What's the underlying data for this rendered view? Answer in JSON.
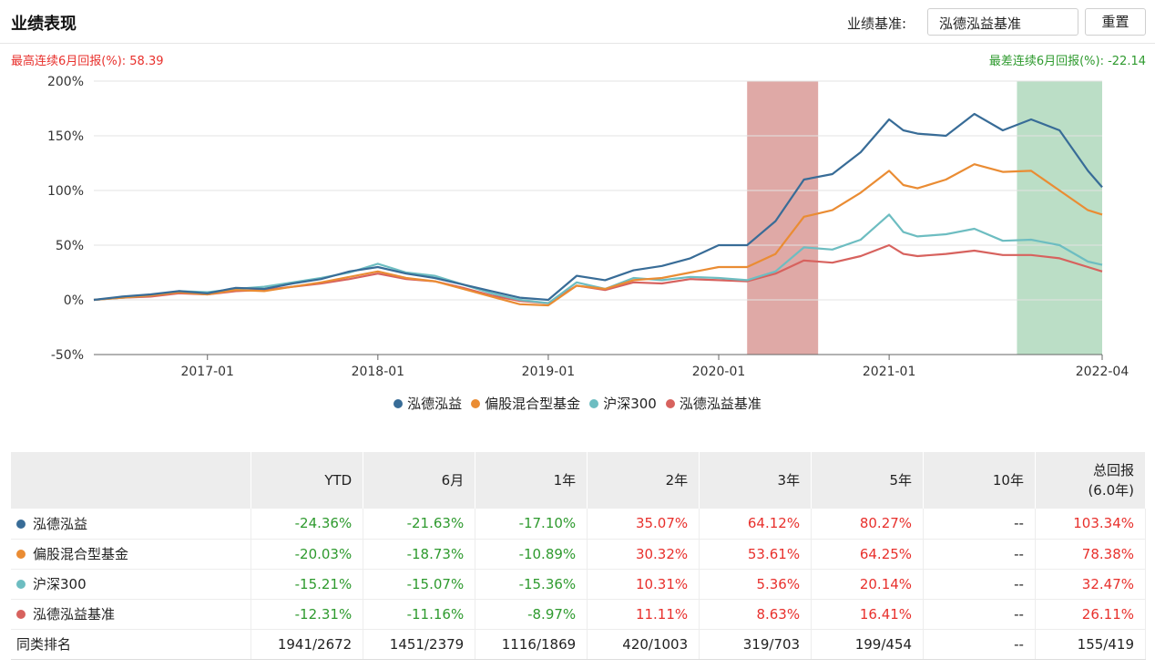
{
  "header": {
    "title": "业绩表现",
    "benchmark_label": "业绩基准:",
    "benchmark_value": "泓德泓益基准",
    "reset_label": "重置"
  },
  "stats": {
    "best_text": "最高连续6月回报(%):  58.39",
    "worst_text": "最差连续6月回报(%):  -22.14"
  },
  "chart_data": {
    "type": "line",
    "title": "",
    "xlabel": "",
    "ylabel": "",
    "ylim": [
      -50,
      200
    ],
    "yticks": [
      "200%",
      "150%",
      "100%",
      "50%",
      "0%",
      "-50%"
    ],
    "xticks": [
      "2017-01",
      "2018-01",
      "2019-01",
      "2020-01",
      "2021-01",
      "2022-04"
    ],
    "grid": "horizontal",
    "legend_position": "bottom",
    "highlights": [
      {
        "label": "最高连续6月",
        "start": "2020-03",
        "end": "2020-08",
        "color": "#c9706a"
      },
      {
        "label": "最差连续6月",
        "start": "2021-10",
        "end": "2022-04",
        "color": "#8ec8a0"
      }
    ],
    "x": [
      "2016-05",
      "2016-07",
      "2016-09",
      "2016-11",
      "2017-01",
      "2017-03",
      "2017-05",
      "2017-07",
      "2017-09",
      "2017-11",
      "2018-01",
      "2018-03",
      "2018-05",
      "2018-07",
      "2018-09",
      "2018-11",
      "2019-01",
      "2019-03",
      "2019-05",
      "2019-07",
      "2019-09",
      "2019-11",
      "2020-01",
      "2020-03",
      "2020-05",
      "2020-07",
      "2020-09",
      "2020-11",
      "2021-01",
      "2021-02",
      "2021-03",
      "2021-05",
      "2021-07",
      "2021-09",
      "2021-11",
      "2022-01",
      "2022-03",
      "2022-04"
    ],
    "series": [
      {
        "name": "泓德泓益",
        "color": "#386c97",
        "values": [
          0,
          3,
          5,
          8,
          6,
          11,
          10,
          15,
          19,
          26,
          30,
          24,
          20,
          14,
          8,
          2,
          0,
          22,
          18,
          27,
          31,
          38,
          50,
          50,
          72,
          110,
          115,
          135,
          165,
          155,
          152,
          150,
          170,
          155,
          165,
          155,
          118,
          103
        ]
      },
      {
        "name": "偏股混合型基金",
        "color": "#ea8c33",
        "values": [
          0,
          2,
          4,
          7,
          5,
          9,
          8,
          12,
          16,
          21,
          26,
          20,
          17,
          10,
          3,
          -4,
          -5,
          13,
          10,
          18,
          20,
          25,
          30,
          30,
          42,
          76,
          82,
          98,
          118,
          105,
          102,
          110,
          124,
          117,
          118,
          100,
          82,
          78
        ]
      },
      {
        "name": "沪深300",
        "color": "#6dbdc1",
        "values": [
          0,
          2,
          4,
          8,
          7,
          10,
          12,
          16,
          20,
          25,
          33,
          25,
          22,
          14,
          6,
          0,
          -3,
          16,
          10,
          20,
          18,
          21,
          20,
          18,
          26,
          48,
          46,
          55,
          78,
          62,
          58,
          60,
          65,
          54,
          55,
          50,
          35,
          32
        ]
      },
      {
        "name": "泓德泓益基准",
        "color": "#d7625e",
        "values": [
          0,
          2,
          3,
          6,
          5,
          8,
          9,
          12,
          15,
          19,
          24,
          19,
          17,
          11,
          4,
          -1,
          -3,
          13,
          9,
          16,
          15,
          19,
          18,
          17,
          24,
          36,
          34,
          40,
          50,
          42,
          40,
          42,
          45,
          41,
          41,
          38,
          30,
          26
        ]
      }
    ]
  },
  "table": {
    "headers": [
      "",
      "YTD",
      "6月",
      "1年",
      "2年",
      "3年",
      "5年",
      "10年",
      "总回报"
    ],
    "total_sub": "(6.0年)",
    "rows": [
      {
        "name": "泓德泓益",
        "color": "#386c97",
        "cells": [
          "-24.36%",
          "-21.63%",
          "-17.10%",
          "35.07%",
          "64.12%",
          "80.27%",
          "--",
          "103.34%"
        ]
      },
      {
        "name": "偏股混合型基金",
        "color": "#ea8c33",
        "cells": [
          "-20.03%",
          "-18.73%",
          "-10.89%",
          "30.32%",
          "53.61%",
          "64.25%",
          "--",
          "78.38%"
        ]
      },
      {
        "name": "沪深300",
        "color": "#6dbdc1",
        "cells": [
          "-15.21%",
          "-15.07%",
          "-15.36%",
          "10.31%",
          "5.36%",
          "20.14%",
          "--",
          "32.47%"
        ]
      },
      {
        "name": "泓德泓益基准",
        "color": "#d7625e",
        "cells": [
          "-12.31%",
          "-11.16%",
          "-8.97%",
          "11.11%",
          "8.63%",
          "16.41%",
          "--",
          "26.11%"
        ]
      }
    ],
    "rank": {
      "name": "同类排名",
      "cells": [
        "1941/2672",
        "1451/2379",
        "1116/1869",
        "420/1003",
        "319/703",
        "199/454",
        "--",
        "155/419"
      ]
    }
  }
}
